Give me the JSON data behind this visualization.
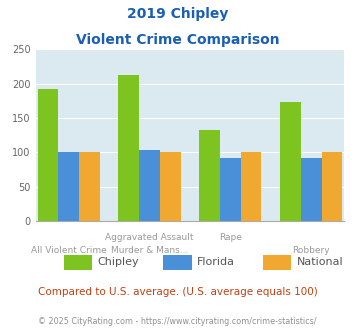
{
  "title_line1": "2019 Chipley",
  "title_line2": "Violent Crime Comparison",
  "cat_labels_top": [
    "",
    "Aggravated Assault",
    "Rape",
    ""
  ],
  "cat_labels_bot": [
    "All Violent Crime",
    "Murder & Mans...",
    "",
    "Robbery"
  ],
  "chipley": [
    193,
    213,
    133,
    173
  ],
  "florida": [
    100,
    103,
    92,
    92
  ],
  "national": [
    101,
    100,
    101,
    101
  ],
  "colors": {
    "chipley": "#7dc421",
    "florida": "#4a90d9",
    "national": "#f0a830"
  },
  "ylim": [
    0,
    250
  ],
  "yticks": [
    0,
    50,
    100,
    150,
    200,
    250
  ],
  "title_color": "#1a5fb4",
  "bg_color": "#daeaf0",
  "footnote": "Compared to U.S. average. (U.S. average equals 100)",
  "copyright": "© 2025 CityRating.com - https://www.cityrating.com/crime-statistics/",
  "footnote_color": "#c04010",
  "copyright_color": "#909090"
}
